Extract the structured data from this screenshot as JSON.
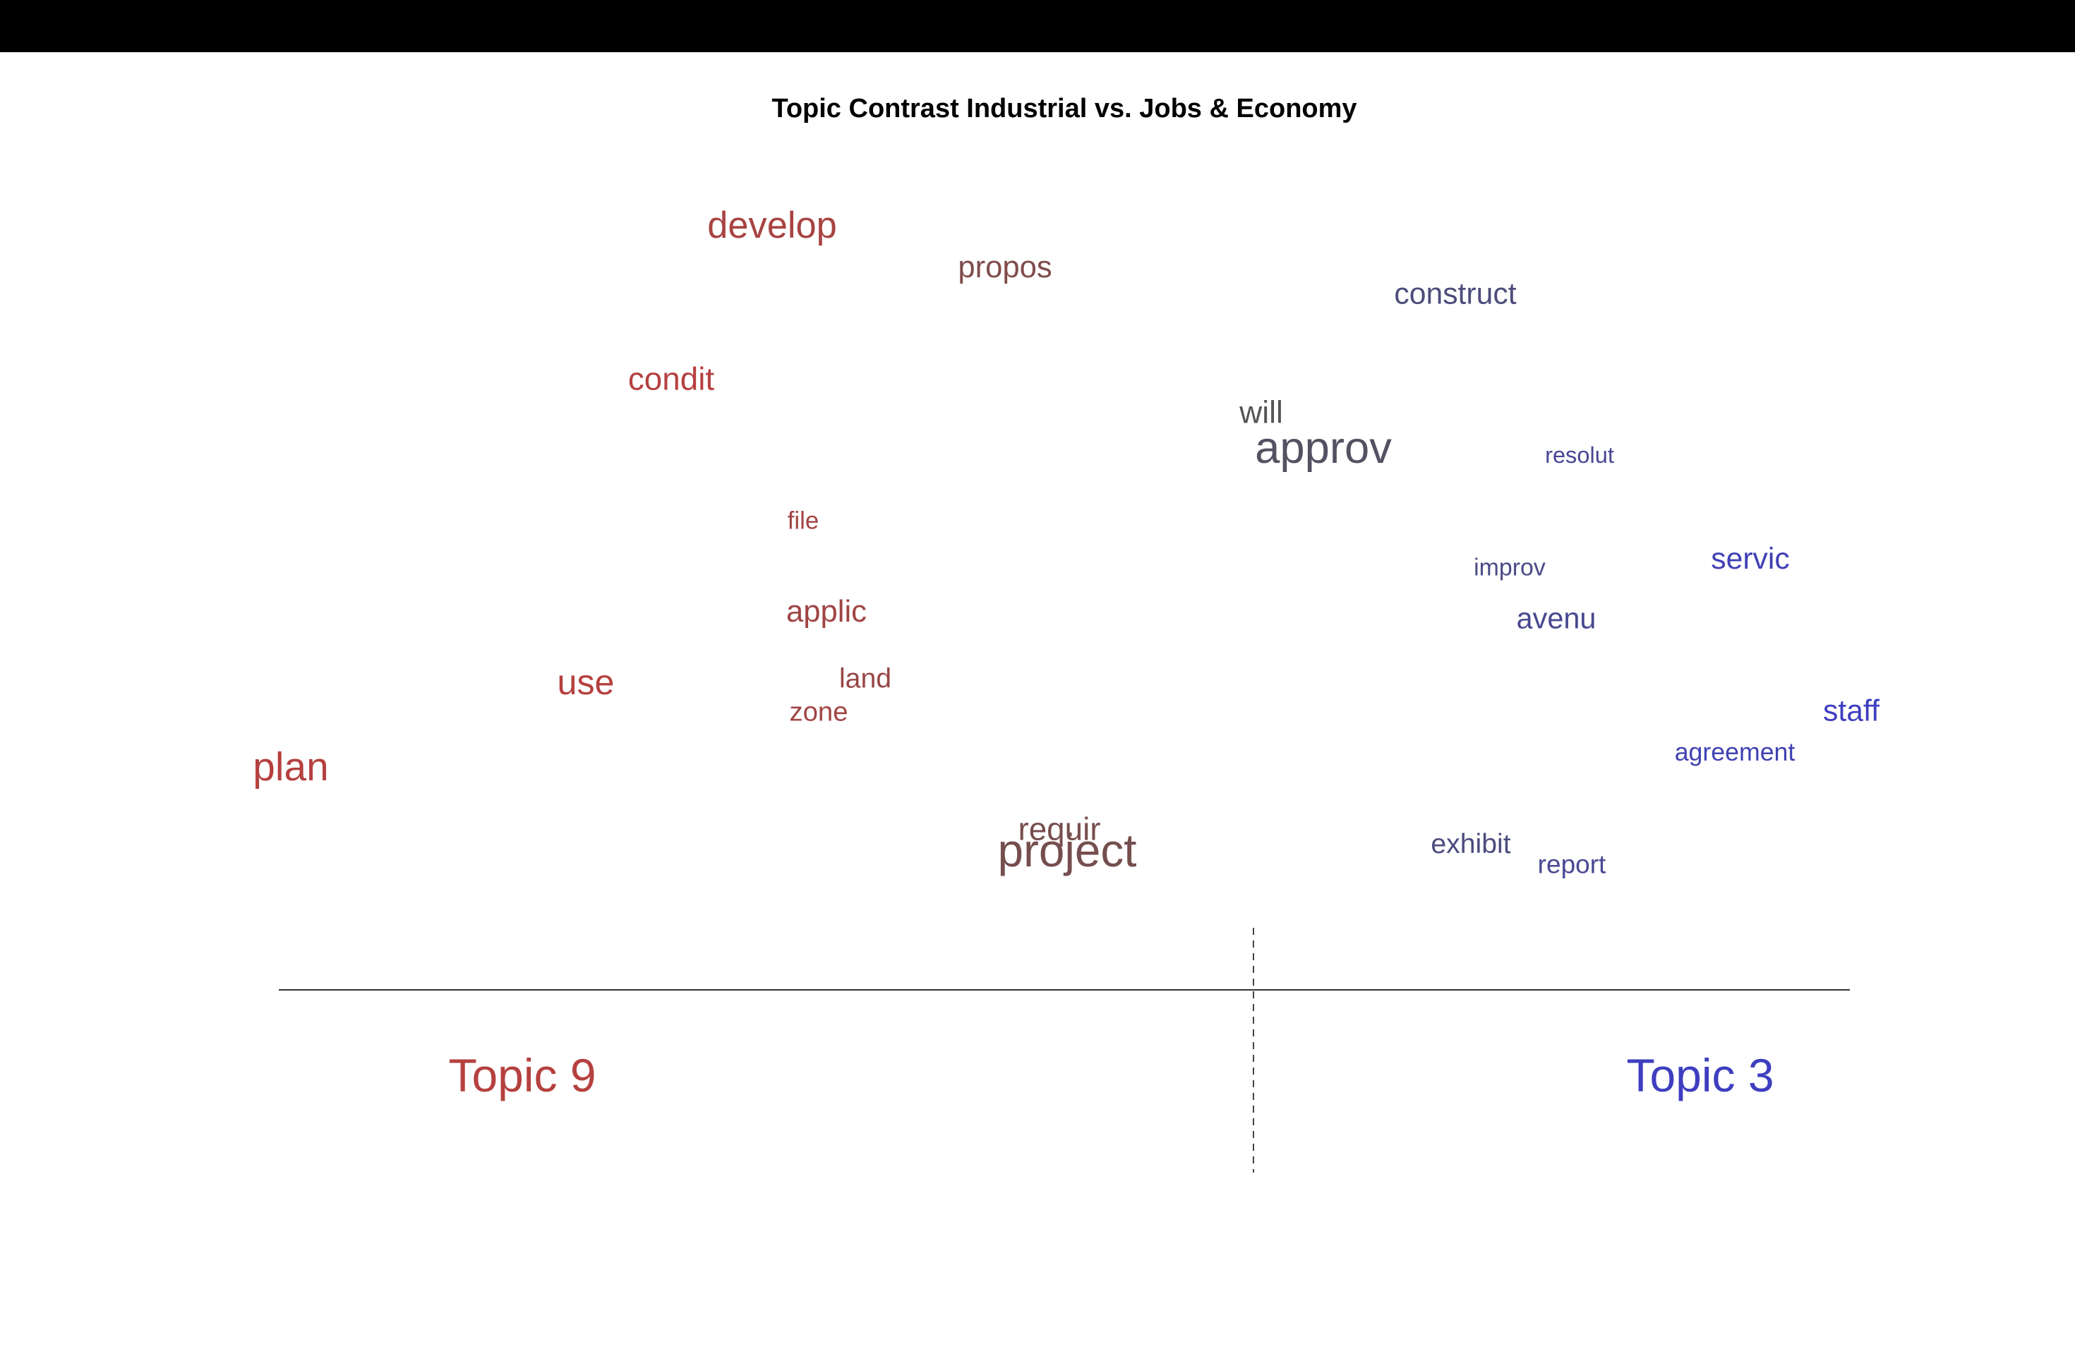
{
  "chart_data": {
    "type": "scatter",
    "title": "Topic Contrast Industrial vs. Jobs & Economy",
    "left_label": "Topic 9",
    "right_label": "Topic 3",
    "left_color": "#b5403f",
    "right_color": "#3e3ec0",
    "neutral_color": "#555555",
    "grid": false,
    "xlim": [
      -1,
      1
    ],
    "ylim": [
      0,
      1
    ],
    "words": [
      {
        "text": "develop",
        "x": -0.62,
        "y": 0.95,
        "weight": 0.6
      },
      {
        "text": "propos",
        "x": -0.32,
        "y": 0.89,
        "weight": 0.4
      },
      {
        "text": "construct",
        "x": 0.26,
        "y": 0.85,
        "weight": 0.38
      },
      {
        "text": "condit",
        "x": -0.75,
        "y": 0.72,
        "weight": 0.45
      },
      {
        "text": "will",
        "x": 0.01,
        "y": 0.67,
        "weight": 0.42
      },
      {
        "text": "approv",
        "x": 0.09,
        "y": 0.61,
        "weight": 0.85
      },
      {
        "text": "resolut",
        "x": 0.42,
        "y": 0.61,
        "weight": 0.15
      },
      {
        "text": "file",
        "x": -0.58,
        "y": 0.51,
        "weight": 0.2
      },
      {
        "text": "improv",
        "x": 0.33,
        "y": 0.44,
        "weight": 0.18
      },
      {
        "text": "servic",
        "x": 0.64,
        "y": 0.45,
        "weight": 0.38
      },
      {
        "text": "applic",
        "x": -0.55,
        "y": 0.37,
        "weight": 0.4
      },
      {
        "text": "avenu",
        "x": 0.39,
        "y": 0.36,
        "weight": 0.35
      },
      {
        "text": "land",
        "x": -0.5,
        "y": 0.27,
        "weight": 0.3
      },
      {
        "text": "use",
        "x": -0.86,
        "y": 0.26,
        "weight": 0.55
      },
      {
        "text": "zone",
        "x": -0.56,
        "y": 0.22,
        "weight": 0.28
      },
      {
        "text": "staff",
        "x": 0.77,
        "y": 0.22,
        "weight": 0.38
      },
      {
        "text": "plan",
        "x": -1.24,
        "y": 0.13,
        "weight": 0.7
      },
      {
        "text": "agreement",
        "x": 0.62,
        "y": 0.16,
        "weight": 0.22
      },
      {
        "text": "requir",
        "x": -0.25,
        "y": 0.04,
        "weight": 0.45
      },
      {
        "text": "project",
        "x": -0.24,
        "y": 0.0,
        "weight": 0.9
      },
      {
        "text": "exhibit",
        "x": 0.28,
        "y": 0.02,
        "weight": 0.3
      },
      {
        "text": "report",
        "x": 0.41,
        "y": -0.01,
        "weight": 0.25
      }
    ]
  }
}
